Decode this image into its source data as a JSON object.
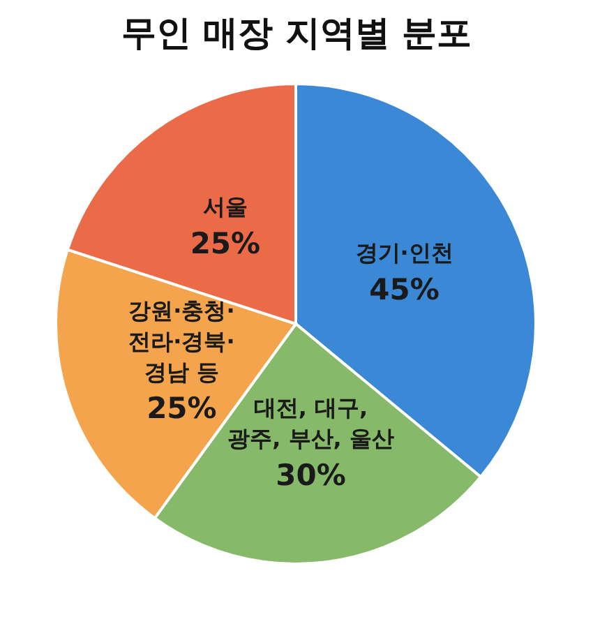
{
  "chart_data": {
    "type": "pie",
    "title": "무인 매장 지역별 분포",
    "categories": [
      "경기·인천",
      "대전, 대구,\n광주, 부산, 울산",
      "강원·충청·\n전라·경북·\n경남 등",
      "서울"
    ],
    "values": [
      45,
      30,
      25,
      25
    ],
    "value_labels": [
      "45%",
      "30%",
      "25%",
      "25%"
    ],
    "colors": [
      "#3a88d6",
      "#86b96a",
      "#f4a44c",
      "#eb6b48"
    ]
  }
}
